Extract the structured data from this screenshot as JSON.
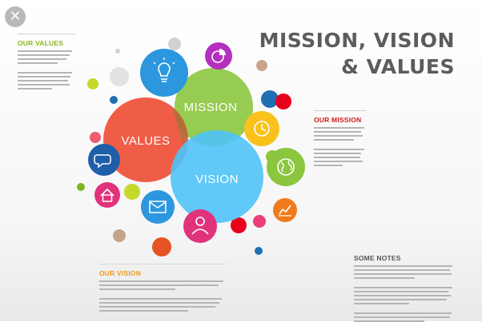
{
  "close_button": {
    "symbol": "✕"
  },
  "title": {
    "line1": "MISSION, VISION",
    "line2": "& VALUES"
  },
  "circles": {
    "mission": "MISSION",
    "values": "VALUES",
    "vision": "VISION"
  },
  "panels": {
    "our_values": "OUR VALUES",
    "our_mission": "OUR MISSION",
    "our_vision": "OUR VISION",
    "some_notes": "SOME NOTES"
  },
  "colors": {
    "mission": "#8cc63f",
    "values": "#ef4f37",
    "vision": "#4fc3f7",
    "values_heading": "#86b818",
    "mission_heading": "#d31b1b",
    "vision_heading": "#f29913",
    "title": "#5c5c5c"
  },
  "icons": [
    "lightbulb-icon",
    "pie-chart-icon",
    "clock-icon",
    "globe-icon",
    "chat-icon",
    "home-icon",
    "mail-icon",
    "user-icon",
    "line-chart-icon"
  ]
}
